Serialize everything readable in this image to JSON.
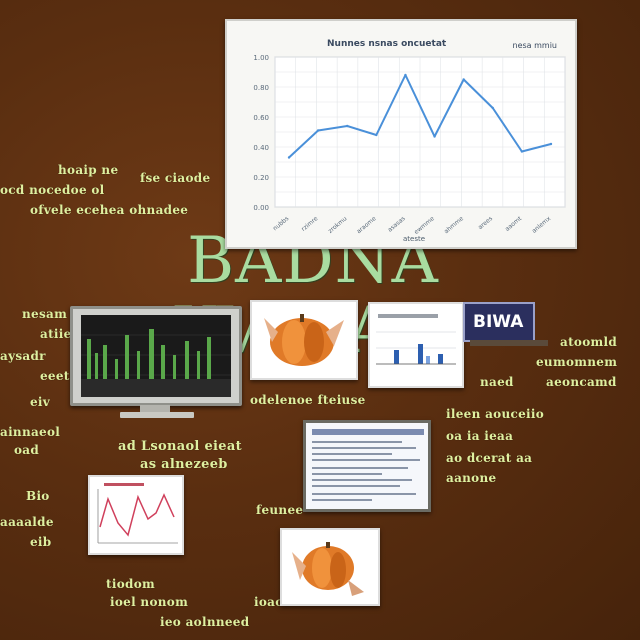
{
  "headline": "BADNA ¥VAVAN",
  "badge_label": "BIWA",
  "main_chart": {
    "title": "Nunnes nsnas oncuetat",
    "corner_text": "nesa mmiu",
    "x_axis_label": "ateste",
    "y_ticks": [
      "1.00",
      "0.80",
      "0.60",
      "0.40",
      "0.20",
      "0.00"
    ],
    "x_ticks": [
      "nubbs",
      "rzimre",
      "zrokmu",
      "araome",
      "asasas",
      "ewmme",
      "ahmme",
      "arees",
      "aaomt",
      "anlemx"
    ]
  },
  "chart_data": {
    "type": "line",
    "title": "Nunnes nsnas oncuetat",
    "xlabel": "ateste",
    "ylabel": "",
    "ylim": [
      0,
      1
    ],
    "categories": [
      "nubbs",
      "rzimre",
      "zrokmu",
      "araome",
      "asasas",
      "ewmme",
      "ahmme",
      "arees",
      "aaomt",
      "anlemx"
    ],
    "values": [
      0.33,
      0.51,
      0.54,
      0.48,
      0.88,
      0.47,
      0.85,
      0.66,
      0.37,
      0.42
    ],
    "grid": true,
    "series_color": "#4a90d9"
  },
  "notes": {
    "top_left_1": "hoaip ne",
    "top_left_2": "ocd nocedoe ol",
    "top_left_3": "ofvele ecehea ohnadee",
    "top_mid": "fse ciaode",
    "left_1": "nesam",
    "left_2": "atiieiel",
    "left_3": "aysadr",
    "left_4": "eeet vh",
    "left_5": "eiv",
    "left_6": "ainnaeol",
    "left_7": "oad",
    "mid_caption": "odelenoe fteiuse",
    "mid_block_1": "ad Lsonaol eieat",
    "mid_block_2": "as alnezeeb",
    "mid_block_3": "feunee",
    "right_1": "atoomld",
    "right_2": "eumomnem",
    "right_3": "aeoncamd",
    "right_4": "naed",
    "right_block_1": "ileen aouceiio",
    "right_block_2": "oa ia ieaa",
    "right_block_3": "ao dcerat aa",
    "right_block_4": "aanone",
    "bl_1": "Bio",
    "bl_2": "aaaalde",
    "bl_3": "eib",
    "bottom_1": "tiodom",
    "bottom_2": "ioel nonom",
    "bottom_3": "ioaoe",
    "bottom_4": "ieo aolnneed"
  },
  "colors": {
    "background": "#5a2e10",
    "handwriting": "#dff0a0",
    "headline": "#a9dca0"
  }
}
